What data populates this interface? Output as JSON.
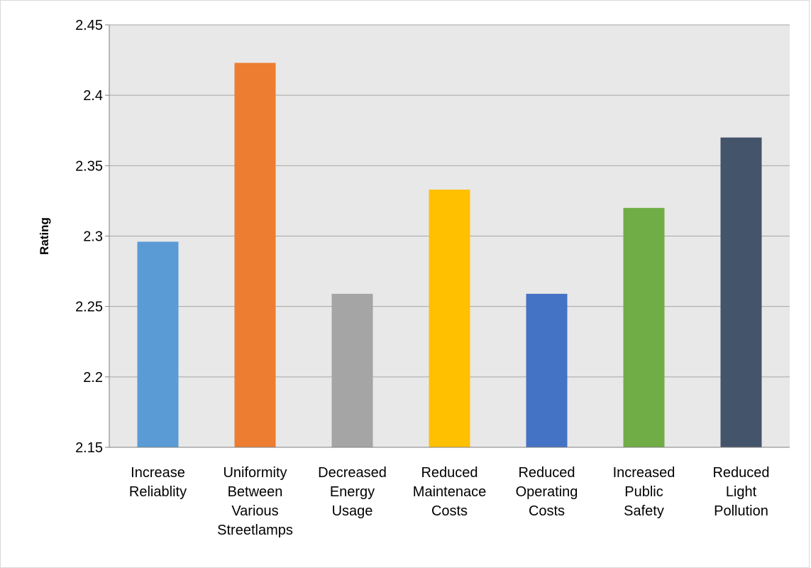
{
  "chart_data": {
    "type": "bar",
    "title": "",
    "xlabel": "",
    "ylabel": "Rating",
    "ylim": [
      2.15,
      2.45
    ],
    "yticks": [
      "2.15",
      "2.2",
      "2.25",
      "2.3",
      "2.35",
      "2.4",
      "2.45"
    ],
    "grid": true,
    "legend": "none",
    "categories": [
      [
        "Increase",
        "Reliablity"
      ],
      [
        "Uniformity",
        "Between",
        "Various",
        "Streetlamps"
      ],
      [
        "Decreased",
        "Energy",
        "Usage"
      ],
      [
        "Reduced",
        "Maintenace",
        "Costs"
      ],
      [
        "Reduced",
        "Operating",
        "Costs"
      ],
      [
        "Increased",
        "Public",
        "Safety"
      ],
      [
        "Reduced",
        "Light",
        "Pollution"
      ]
    ],
    "values": [
      2.296,
      2.423,
      2.259,
      2.333,
      2.259,
      2.32,
      2.37
    ],
    "colors": [
      "#5b9bd5",
      "#ed7d31",
      "#a5a5a5",
      "#ffc000",
      "#4472c4",
      "#70ad47",
      "#44546a"
    ],
    "plot_background": "#e8e8e8",
    "grid_color": "#a6a6a6"
  }
}
